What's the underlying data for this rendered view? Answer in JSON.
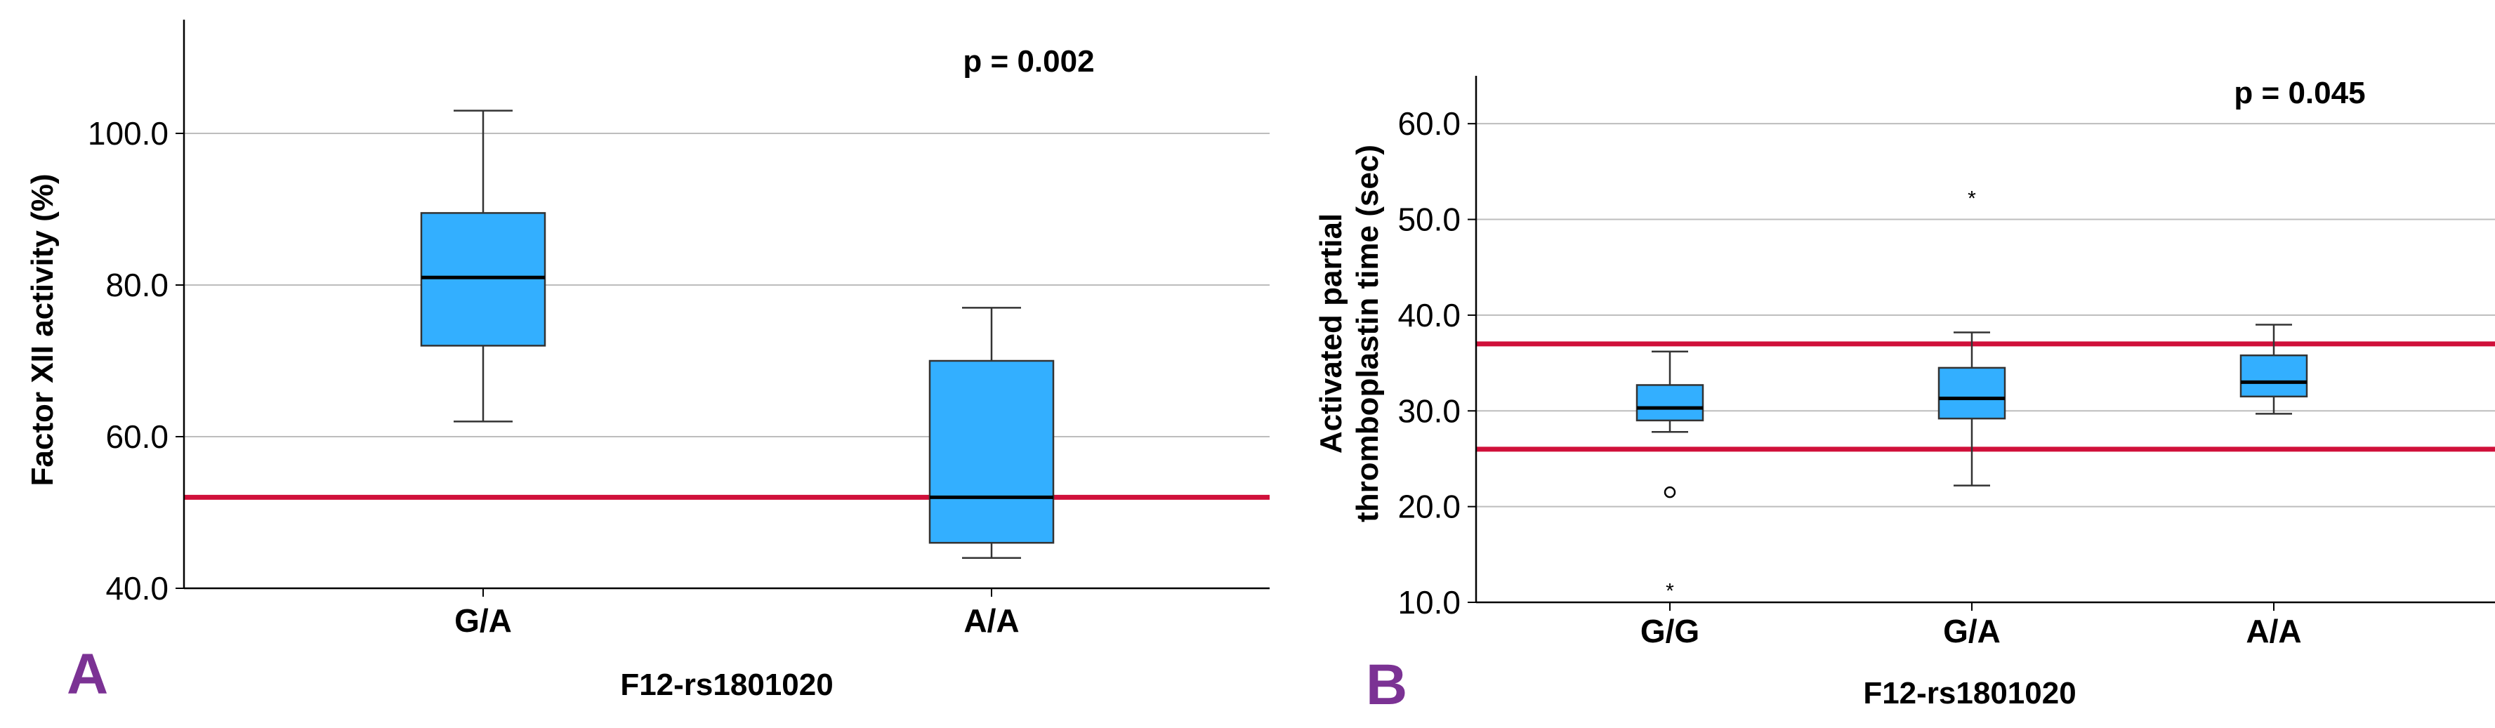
{
  "colors": {
    "box_fill": "#33AFFF",
    "ref_line": "#D0103A",
    "panel_label": "#7B3294",
    "grid": "#BDBDBD"
  },
  "chart_data": [
    {
      "type": "box",
      "panel_label": "A",
      "title": "",
      "xlabel": "F12-rs1801020",
      "ylabel": "Factor XII activity (%)",
      "annotation": "p = 0.002",
      "ylim": [
        40,
        115
      ],
      "yticks": [
        40,
        60,
        80,
        100
      ],
      "ytick_labels": [
        "40.0",
        "60.0",
        "80.0",
        "100.0"
      ],
      "grid": true,
      "categories": [
        "G/A",
        "A/A"
      ],
      "boxes": [
        {
          "min": 62,
          "q1": 72,
          "median": 81,
          "q3": 89.5,
          "max": 103,
          "outliers": [],
          "extremes": []
        },
        {
          "min": 44,
          "q1": 46,
          "median": 52,
          "q3": 70,
          "max": 77,
          "outliers": [],
          "extremes": []
        }
      ],
      "reference_lines": [
        52
      ]
    },
    {
      "type": "box",
      "panel_label": "B",
      "title": "",
      "xlabel": "F12-rs1801020",
      "ylabel_lines": [
        "Activated partial",
        "thromboplastin time (sec)"
      ],
      "annotation": "p = 0.045",
      "ylim": [
        10,
        65
      ],
      "yticks": [
        10,
        20,
        30,
        40,
        50,
        60
      ],
      "ytick_labels": [
        "10.0",
        "20.0",
        "30.0",
        "40.0",
        "50.0",
        "60.0"
      ],
      "grid": true,
      "categories": [
        "G/G",
        "G/A",
        "A/A"
      ],
      "boxes": [
        {
          "min": 27.8,
          "q1": 29,
          "median": 30.3,
          "q3": 32.7,
          "max": 36.2,
          "outliers": [
            21.5
          ],
          "extremes": [
            11.5
          ]
        },
        {
          "min": 22.2,
          "q1": 29.2,
          "median": 31.3,
          "q3": 34.5,
          "max": 38.2,
          "outliers": [],
          "extremes": [
            52.5
          ]
        },
        {
          "min": 29.7,
          "q1": 31.5,
          "median": 33,
          "q3": 35.8,
          "max": 39,
          "outliers": [],
          "extremes": []
        }
      ],
      "reference_lines": [
        37,
        26
      ]
    }
  ]
}
